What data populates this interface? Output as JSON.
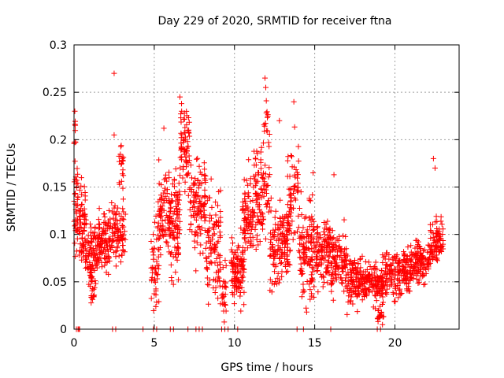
{
  "colors": {
    "marker": "#ff0000",
    "grid": "#a0a0a0",
    "axis": "#000000",
    "background": "#ffffff"
  },
  "chart_data": {
    "type": "scatter",
    "title": "Day 229 of 2020, SRMTID for receiver ftna",
    "xlabel": "GPS time / hours",
    "ylabel": "SRMTID / TECUs",
    "xlim": [
      0,
      24
    ],
    "ylim": [
      0,
      0.3
    ],
    "xticks": [
      0,
      5,
      10,
      15,
      20
    ],
    "xtick_labels": [
      "0",
      "5",
      "10",
      "15",
      "20"
    ],
    "yticks": [
      0,
      0.05,
      0.1,
      0.15,
      0.2,
      0.25,
      0.3
    ],
    "ytick_labels": [
      "0",
      "0.05",
      "0.1",
      "0.15",
      "0.2",
      "0.25",
      "0.3"
    ],
    "grid": true,
    "marker": "+",
    "series": [
      {
        "name": "SRMTID",
        "description": "Approximate point cloud: [start_hour, end_hour, mean, spread, count]",
        "clusters": [
          [
            0.0,
            0.25,
            0.13,
            0.05,
            40
          ],
          [
            0.0,
            0.1,
            0.205,
            0.025,
            8
          ],
          [
            0.3,
            0.7,
            0.11,
            0.04,
            60
          ],
          [
            0.7,
            1.5,
            0.08,
            0.03,
            90
          ],
          [
            1.0,
            1.3,
            0.04,
            0.03,
            25
          ],
          [
            1.5,
            2.2,
            0.09,
            0.03,
            90
          ],
          [
            2.2,
            3.2,
            0.1,
            0.03,
            100
          ],
          [
            2.8,
            3.1,
            0.16,
            0.03,
            20
          ],
          [
            4.8,
            5.3,
            0.06,
            0.04,
            45
          ],
          [
            5.2,
            6.0,
            0.12,
            0.04,
            90
          ],
          [
            6.0,
            6.6,
            0.11,
            0.05,
            90
          ],
          [
            6.6,
            7.2,
            0.19,
            0.04,
            70
          ],
          [
            7.2,
            8.2,
            0.13,
            0.05,
            110
          ],
          [
            8.2,
            9.2,
            0.09,
            0.05,
            100
          ],
          [
            9.2,
            9.5,
            0.04,
            0.03,
            25
          ],
          [
            9.8,
            10.6,
            0.06,
            0.03,
            110
          ],
          [
            10.5,
            11.2,
            0.12,
            0.04,
            90
          ],
          [
            11.2,
            12.2,
            0.14,
            0.05,
            100
          ],
          [
            11.8,
            12.2,
            0.22,
            0.03,
            15
          ],
          [
            12.2,
            13.5,
            0.09,
            0.04,
            140
          ],
          [
            13.3,
            14.0,
            0.15,
            0.05,
            60
          ],
          [
            14.0,
            15.0,
            0.08,
            0.05,
            120
          ],
          [
            15.0,
            16.0,
            0.08,
            0.03,
            110
          ],
          [
            16.0,
            17.0,
            0.07,
            0.03,
            110
          ],
          [
            17.0,
            18.0,
            0.05,
            0.025,
            110
          ],
          [
            18.0,
            19.5,
            0.05,
            0.02,
            150
          ],
          [
            18.8,
            19.3,
            0.015,
            0.015,
            20
          ],
          [
            19.5,
            21.0,
            0.06,
            0.025,
            150
          ],
          [
            21.0,
            22.2,
            0.07,
            0.02,
            120
          ],
          [
            22.2,
            23.0,
            0.09,
            0.025,
            90
          ]
        ],
        "outliers": [
          [
            2.5,
            0.27
          ],
          [
            2.5,
            0.205
          ],
          [
            11.9,
            0.265
          ],
          [
            11.95,
            0.255
          ],
          [
            13.7,
            0.24
          ],
          [
            6.6,
            0.245
          ],
          [
            6.7,
            0.238
          ],
          [
            0.05,
            0.23
          ],
          [
            22.4,
            0.18
          ],
          [
            22.5,
            0.17
          ],
          [
            14.9,
            0.165
          ],
          [
            5.6,
            0.212
          ],
          [
            12.8,
            0.22
          ],
          [
            16.2,
            0.163
          ]
        ],
        "zeros": [
          0.15,
          0.25,
          0.3,
          0.35,
          2.4,
          2.6,
          4.3,
          4.95,
          5.15,
          6.0,
          6.2,
          7.1,
          7.6,
          7.8,
          8.0,
          9.2,
          9.4,
          9.6,
          10.2,
          13.9,
          14.3,
          16.0,
          18.9,
          19.1
        ]
      }
    ]
  }
}
